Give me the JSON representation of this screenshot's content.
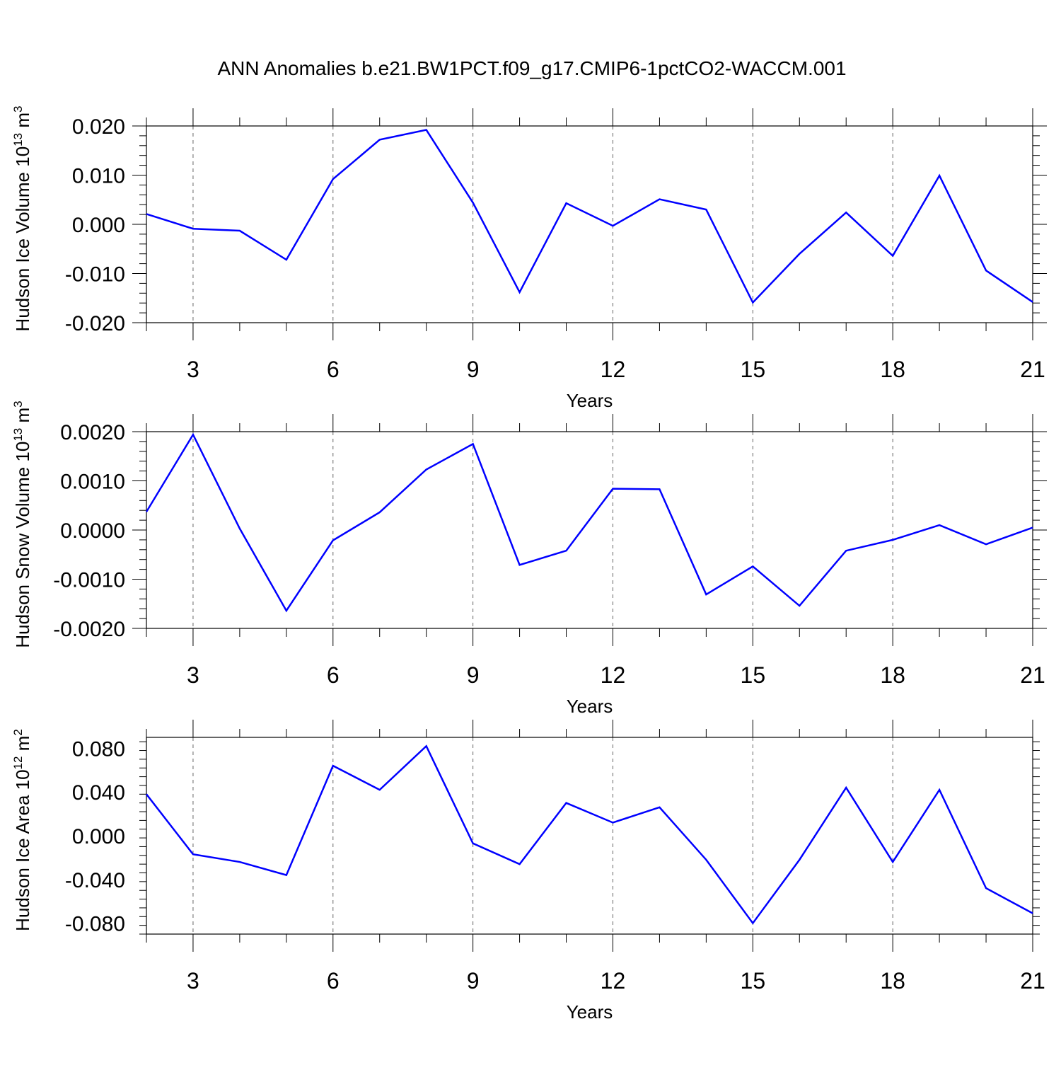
{
  "title": "ANN Anomalies b.e21.BW1PCT.f09_g17.CMIP6-1pctCO2-WACCM.001",
  "line_color": "#0000ff",
  "chart_data": [
    {
      "type": "line",
      "ylabel": "Hudson Ice Volume 10",
      "ylabel_exp": "13",
      "ylabel_unit": " m",
      "ylabel_unit_exp": "3",
      "xlabel": "Years",
      "xlim": [
        2,
        21
      ],
      "ylim": [
        -0.02,
        0.02
      ],
      "xticks": [
        3,
        6,
        9,
        12,
        15,
        18,
        21
      ],
      "yticks": [
        {
          "v": 0.02,
          "label": "0.020"
        },
        {
          "v": 0.01,
          "label": "0.010"
        },
        {
          "v": 0.0,
          "label": "0.000"
        },
        {
          "v": -0.01,
          "label": "-0.010"
        },
        {
          "v": -0.02,
          "label": "-0.020"
        }
      ],
      "x": [
        2,
        3,
        4,
        5,
        6,
        7,
        8,
        9,
        10,
        11,
        12,
        13,
        14,
        15,
        16,
        17,
        18,
        19,
        20,
        21
      ],
      "values": [
        0.0021,
        -0.0009,
        -0.0013,
        -0.0072,
        0.0092,
        0.0172,
        0.0192,
        0.0044,
        -0.0138,
        0.0043,
        -0.0003,
        0.0051,
        0.003,
        -0.0159,
        -0.006,
        0.0024,
        -0.0064,
        0.0099,
        -0.0094,
        -0.0158
      ]
    },
    {
      "type": "line",
      "ylabel": "Hudson Snow Volume 10",
      "ylabel_exp": "13",
      "ylabel_unit": " m",
      "ylabel_unit_exp": "3",
      "xlabel": "Years",
      "xlim": [
        2,
        21
      ],
      "ylim": [
        -0.002,
        0.002
      ],
      "xticks": [
        3,
        6,
        9,
        12,
        15,
        18,
        21
      ],
      "yticks": [
        {
          "v": 0.002,
          "label": "0.0020"
        },
        {
          "v": 0.001,
          "label": "0.0010"
        },
        {
          "v": 0.0,
          "label": "0.0000"
        },
        {
          "v": -0.001,
          "label": "-0.0010"
        },
        {
          "v": -0.002,
          "label": "-0.0020"
        }
      ],
      "x": [
        2,
        3,
        4,
        5,
        6,
        7,
        8,
        9,
        10,
        11,
        12,
        13,
        14,
        15,
        16,
        17,
        18,
        19,
        20,
        21
      ],
      "values": [
        0.00037,
        0.00194,
        3e-05,
        -0.00164,
        -0.00021,
        0.00036,
        0.00123,
        0.00175,
        -0.00071,
        -0.00042,
        0.00084,
        0.00083,
        -0.00131,
        -0.00074,
        -0.00154,
        -0.00042,
        -0.0002,
        0.0001,
        -0.00029,
        5e-05
      ]
    },
    {
      "type": "line",
      "ylabel": "Hudson Ice Area 10",
      "ylabel_exp": "12",
      "ylabel_unit": " m",
      "ylabel_unit_exp": "2",
      "xlabel": "Years",
      "xlim": [
        2,
        21
      ],
      "ylim": [
        -0.09,
        0.09
      ],
      "xticks": [
        3,
        6,
        9,
        12,
        15,
        18,
        21
      ],
      "yticks": [
        {
          "v": 0.08,
          "label": "0.080"
        },
        {
          "v": 0.04,
          "label": "0.040"
        },
        {
          "v": 0.0,
          "label": "0.000"
        },
        {
          "v": -0.04,
          "label": "-0.040"
        },
        {
          "v": -0.08,
          "label": "-0.080"
        }
      ],
      "x": [
        2,
        3,
        4,
        5,
        6,
        7,
        8,
        9,
        10,
        11,
        12,
        13,
        14,
        15,
        16,
        17,
        18,
        19,
        20,
        21
      ],
      "values": [
        0.038,
        -0.017,
        -0.024,
        -0.036,
        0.064,
        0.042,
        0.082,
        -0.007,
        -0.026,
        0.03,
        0.012,
        0.026,
        -0.022,
        -0.08,
        -0.022,
        0.044,
        -0.024,
        0.042,
        -0.048,
        -0.071
      ]
    }
  ]
}
